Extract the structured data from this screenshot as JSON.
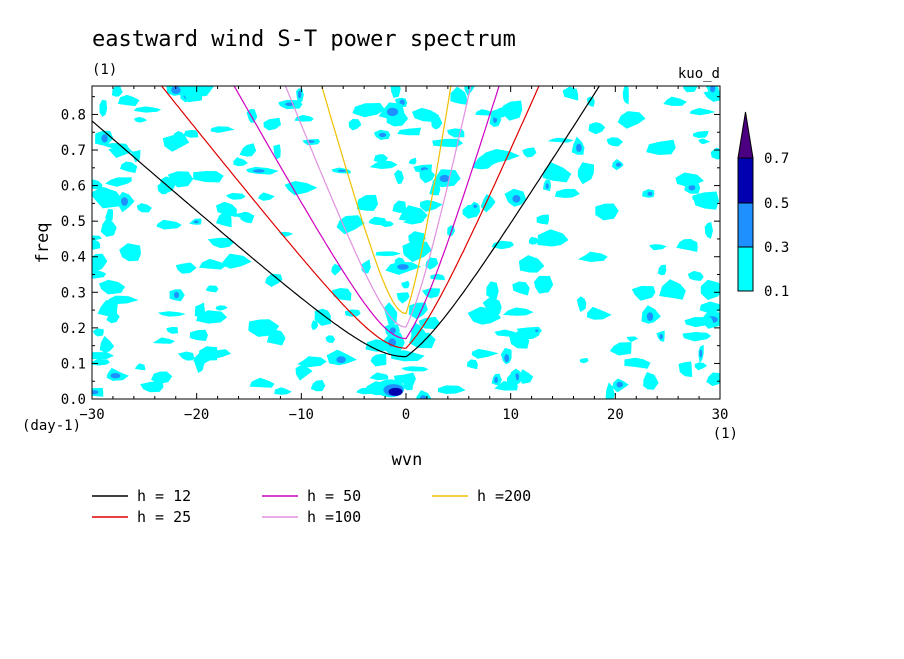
{
  "chart_data": {
    "type": "heatmap",
    "title": "eastward wind S-T power spectrum",
    "subtitle_left": "(1)",
    "subtitle_right": "kuo_d",
    "xlabel": "wvn",
    "ylabel": "freq",
    "x_unit": "(1)",
    "y_unit": "(day-1)",
    "xlim": [
      -30,
      30
    ],
    "ylim": [
      0,
      0.88
    ],
    "x_ticks": [
      "-30",
      "-20",
      "-10",
      "0",
      "10",
      "20",
      "30"
    ],
    "y_ticks": [
      "0.0",
      "0.1",
      "0.2",
      "0.3",
      "0.4",
      "0.5",
      "0.6",
      "0.7",
      "0.8"
    ],
    "contour_levels": [
      0.1,
      0.3,
      0.5,
      0.7
    ],
    "colorbar": {
      "labels": [
        "0.1",
        "0.3",
        "0.5",
        "0.7"
      ],
      "colors": [
        "#00ffff",
        "#1e90ff",
        "#0000b0",
        "#4b0082"
      ]
    },
    "series": [
      {
        "name": "h = 12",
        "h": 12,
        "color": "#000000"
      },
      {
        "name": "h = 25",
        "h": 25,
        "color": "#e00000"
      },
      {
        "name": "h = 50",
        "h": 50,
        "color": "#d000c0"
      },
      {
        "name": "h =100",
        "h": 100,
        "color": "#e090e0"
      },
      {
        "name": "h =200",
        "h": 200,
        "color": "#f0c000"
      }
    ],
    "grid": false,
    "legend_position": "bottom-left"
  }
}
